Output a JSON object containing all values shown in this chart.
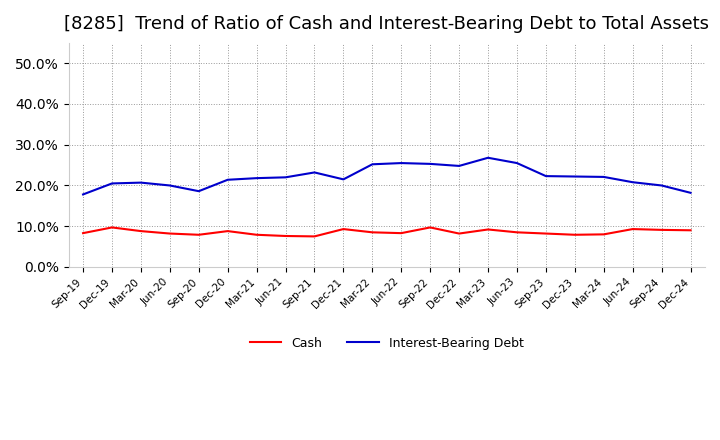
{
  "title": "[8285]  Trend of Ratio of Cash and Interest-Bearing Debt to Total Assets",
  "x_labels": [
    "Sep-19",
    "Dec-19",
    "Mar-20",
    "Jun-20",
    "Sep-20",
    "Dec-20",
    "Mar-21",
    "Jun-21",
    "Sep-21",
    "Dec-21",
    "Mar-22",
    "Jun-22",
    "Sep-22",
    "Dec-22",
    "Mar-23",
    "Jun-23",
    "Sep-23",
    "Dec-23",
    "Mar-24",
    "Jun-24",
    "Sep-24",
    "Dec-24"
  ],
  "cash": [
    0.083,
    0.097,
    0.088,
    0.082,
    0.079,
    0.088,
    0.079,
    0.076,
    0.075,
    0.093,
    0.085,
    0.083,
    0.097,
    0.082,
    0.092,
    0.085,
    0.082,
    0.079,
    0.08,
    0.093,
    0.091,
    0.09
  ],
  "interest_bearing_debt": [
    0.178,
    0.205,
    0.207,
    0.2,
    0.186,
    0.214,
    0.218,
    0.22,
    0.232,
    0.215,
    0.252,
    0.255,
    0.253,
    0.248,
    0.268,
    0.255,
    0.223,
    0.222,
    0.221,
    0.208,
    0.2,
    0.182
  ],
  "cash_color": "#ff0000",
  "debt_color": "#0000cc",
  "background_color": "#ffffff",
  "plot_background": "#ffffff",
  "grid_color": "#999999",
  "ylim": [
    0.0,
    0.55
  ],
  "yticks": [
    0.0,
    0.1,
    0.2,
    0.3,
    0.4,
    0.5
  ],
  "title_fontsize": 13,
  "legend_cash": "Cash",
  "legend_debt": "Interest-Bearing Debt"
}
